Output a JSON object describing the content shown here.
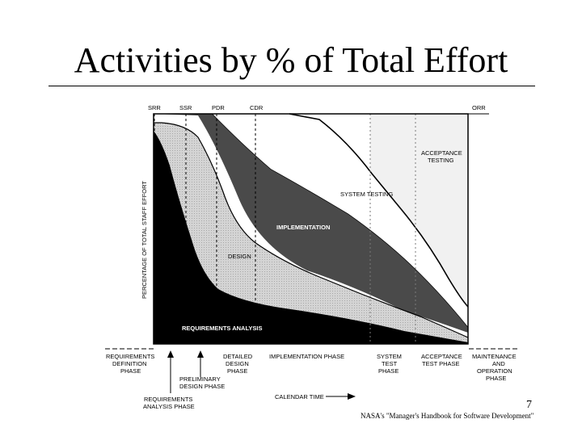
{
  "slide": {
    "title": "Activities by % of Total Effort",
    "page_number": "7",
    "source_note": "NASA's \"Manager's Handbook for Software Development\""
  },
  "diagram": {
    "y_axis_label": "PERCENTAGE OF TOTAL STAFF EFFORT",
    "calendar_label": "CALENDAR TIME",
    "milestones": [
      "SRR",
      "SSR",
      "PDR",
      "CDR",
      "ORR"
    ],
    "activities": {
      "requirements": "REQUIREMENTS ANALYSIS",
      "design": "DESIGN",
      "implementation": "IMPLEMENTATION",
      "system_testing": "SYSTEM TESTING",
      "acceptance_1": "ACCEPTANCE",
      "acceptance_2": "TESTING"
    },
    "phases": {
      "req_def_1": "REQUIREMENTS",
      "req_def_2": "DEFINITION",
      "req_def_3": "PHASE",
      "detailed_1": "DETAILED",
      "detailed_2": "DESIGN",
      "detailed_3": "PHASE",
      "implementation": "IMPLEMENTATION PHASE",
      "system_test_1": "SYSTEM",
      "system_test_2": "TEST",
      "system_test_3": "PHASE",
      "acceptance_1": "ACCEPTANCE",
      "acceptance_2": "TEST PHASE",
      "maintenance_1": "MAINTENANCE",
      "maintenance_2": "AND",
      "maintenance_3": "OPERATION",
      "maintenance_4": "PHASE",
      "preliminary_1": "PRELIMINARY",
      "preliminary_2": "DESIGN PHASE",
      "req_analysis_1": "REQUIREMENTS",
      "req_analysis_2": "ANALYSIS PHASE"
    }
  }
}
